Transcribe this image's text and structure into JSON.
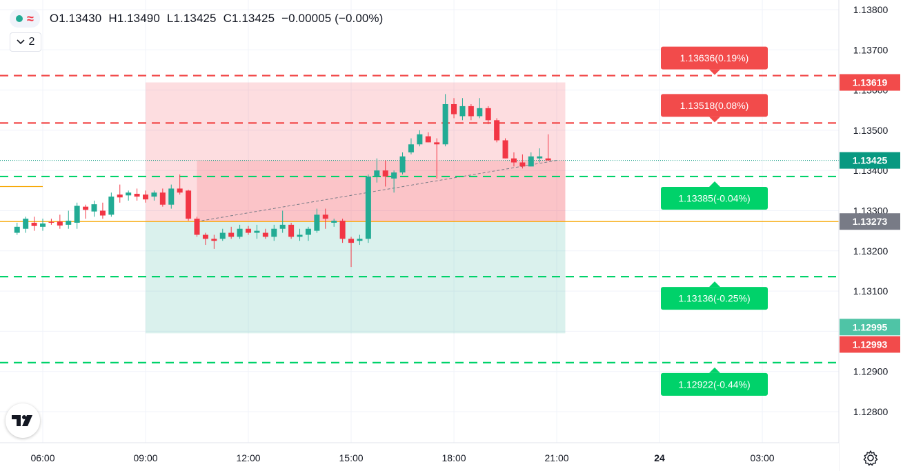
{
  "legend": {
    "open": "O1.13430",
    "high": "H1.13490",
    "low": "L1.13425",
    "close": "C1.13425",
    "change": "−0.00005 (−0.00%)",
    "indicator_count": "2"
  },
  "price_axis": {
    "ticks": [
      "1.13800",
      "1.13700",
      "1.13600",
      "1.13500",
      "1.13400",
      "1.13300",
      "1.13200",
      "1.13100",
      "1.13000",
      "1.12900",
      "1.12800"
    ]
  },
  "time_axis": {
    "ticks": [
      "06:00",
      "09:00",
      "12:00",
      "15:00",
      "18:00",
      "21:00",
      "24",
      "03:00"
    ]
  },
  "axis_badges": {
    "upper_target": "1.13619",
    "last_price": "1.13425",
    "entry": "1.13273",
    "lower_green": "1.12995",
    "lower_red": "1.12993"
  },
  "order_labels": {
    "tp2": "1.13636(0.19%)",
    "tp1": "1.13518(0.08%)",
    "sl1": "1.13385(-0.04%)",
    "sl2": "1.13136(-0.25%)",
    "sl3": "1.12922(-0.44%)"
  },
  "colors": {
    "up": "#22ab94",
    "down": "#f23645",
    "entry_line": "#f7a600",
    "label_red": "#f24b4b",
    "label_green": "#00d26a"
  },
  "chart_data": {
    "type": "candlestick",
    "symbol_interval": "15m",
    "price_range": [
      1.1275,
      1.1385
    ],
    "candles": [
      {
        "t": "05:15",
        "o": 1.13245,
        "h": 1.1327,
        "l": 1.1324,
        "c": 1.1326
      },
      {
        "t": "05:30",
        "o": 1.13255,
        "h": 1.13285,
        "l": 1.13245,
        "c": 1.1328
      },
      {
        "t": "05:45",
        "o": 1.1327,
        "h": 1.13285,
        "l": 1.1325,
        "c": 1.13262
      },
      {
        "t": "06:00",
        "o": 1.1326,
        "h": 1.1328,
        "l": 1.1325,
        "c": 1.13268
      },
      {
        "t": "06:15",
        "o": 1.13272,
        "h": 1.1328,
        "l": 1.13265,
        "c": 1.1327
      },
      {
        "t": "06:30",
        "o": 1.13273,
        "h": 1.1329,
        "l": 1.13255,
        "c": 1.13263
      },
      {
        "t": "06:45",
        "o": 1.13265,
        "h": 1.133,
        "l": 1.13255,
        "c": 1.13275
      },
      {
        "t": "07:00",
        "o": 1.1327,
        "h": 1.1332,
        "l": 1.13255,
        "c": 1.13312
      },
      {
        "t": "07:15",
        "o": 1.1331,
        "h": 1.13315,
        "l": 1.1328,
        "c": 1.13302
      },
      {
        "t": "07:30",
        "o": 1.13298,
        "h": 1.13325,
        "l": 1.13285,
        "c": 1.13316
      },
      {
        "t": "07:45",
        "o": 1.133,
        "h": 1.1332,
        "l": 1.1328,
        "c": 1.13288
      },
      {
        "t": "08:00",
        "o": 1.1329,
        "h": 1.13345,
        "l": 1.13285,
        "c": 1.13335
      },
      {
        "t": "08:15",
        "o": 1.1334,
        "h": 1.13365,
        "l": 1.1332,
        "c": 1.13333
      },
      {
        "t": "08:30",
        "o": 1.13338,
        "h": 1.1335,
        "l": 1.13325,
        "c": 1.13345
      },
      {
        "t": "08:45",
        "o": 1.13342,
        "h": 1.13355,
        "l": 1.13325,
        "c": 1.13335
      },
      {
        "t": "09:00",
        "o": 1.1334,
        "h": 1.1335,
        "l": 1.1332,
        "c": 1.13328
      },
      {
        "t": "09:15",
        "o": 1.13335,
        "h": 1.1335,
        "l": 1.13325,
        "c": 1.13345
      },
      {
        "t": "09:30",
        "o": 1.13345,
        "h": 1.13355,
        "l": 1.1331,
        "c": 1.13315
      },
      {
        "t": "09:45",
        "o": 1.13315,
        "h": 1.13365,
        "l": 1.13305,
        "c": 1.13355
      },
      {
        "t": "10:00",
        "o": 1.13355,
        "h": 1.1339,
        "l": 1.1334,
        "c": 1.13345
      },
      {
        "t": "10:15",
        "o": 1.1335,
        "h": 1.13352,
        "l": 1.13275,
        "c": 1.1328
      },
      {
        "t": "10:30",
        "o": 1.1328,
        "h": 1.13285,
        "l": 1.13235,
        "c": 1.1324
      },
      {
        "t": "10:45",
        "o": 1.1324,
        "h": 1.13245,
        "l": 1.13215,
        "c": 1.1323
      },
      {
        "t": "11:00",
        "o": 1.1323,
        "h": 1.1324,
        "l": 1.13205,
        "c": 1.13225
      },
      {
        "t": "11:15",
        "o": 1.1323,
        "h": 1.13255,
        "l": 1.13225,
        "c": 1.13245
      },
      {
        "t": "11:30",
        "o": 1.13245,
        "h": 1.1326,
        "l": 1.1323,
        "c": 1.13235
      },
      {
        "t": "11:45",
        "o": 1.13235,
        "h": 1.13265,
        "l": 1.1323,
        "c": 1.13255
      },
      {
        "t": "12:00",
        "o": 1.13255,
        "h": 1.13262,
        "l": 1.1324,
        "c": 1.13245
      },
      {
        "t": "12:15",
        "o": 1.13245,
        "h": 1.13265,
        "l": 1.1323,
        "c": 1.1325
      },
      {
        "t": "12:30",
        "o": 1.13245,
        "h": 1.13255,
        "l": 1.1323,
        "c": 1.13235
      },
      {
        "t": "12:45",
        "o": 1.13235,
        "h": 1.13265,
        "l": 1.13225,
        "c": 1.13255
      },
      {
        "t": "13:00",
        "o": 1.13255,
        "h": 1.133,
        "l": 1.13245,
        "c": 1.13265
      },
      {
        "t": "13:15",
        "o": 1.13265,
        "h": 1.1327,
        "l": 1.1323,
        "c": 1.13235
      },
      {
        "t": "13:30",
        "o": 1.13235,
        "h": 1.13255,
        "l": 1.13225,
        "c": 1.1324
      },
      {
        "t": "13:45",
        "o": 1.1324,
        "h": 1.1326,
        "l": 1.13225,
        "c": 1.13255
      },
      {
        "t": "14:00",
        "o": 1.1325,
        "h": 1.13305,
        "l": 1.13245,
        "c": 1.1329
      },
      {
        "t": "14:15",
        "o": 1.1329,
        "h": 1.13305,
        "l": 1.13255,
        "c": 1.1328
      },
      {
        "t": "14:30",
        "o": 1.1327,
        "h": 1.1328,
        "l": 1.1326,
        "c": 1.13275
      },
      {
        "t": "14:45",
        "o": 1.13275,
        "h": 1.1328,
        "l": 1.1322,
        "c": 1.1323
      },
      {
        "t": "15:00",
        "o": 1.1323,
        "h": 1.13235,
        "l": 1.1316,
        "c": 1.1322
      },
      {
        "t": "15:15",
        "o": 1.13225,
        "h": 1.1324,
        "l": 1.13215,
        "c": 1.1323
      },
      {
        "t": "15:30",
        "o": 1.1323,
        "h": 1.1339,
        "l": 1.1322,
        "c": 1.13385
      },
      {
        "t": "15:45",
        "o": 1.13385,
        "h": 1.1343,
        "l": 1.1337,
        "c": 1.134
      },
      {
        "t": "16:00",
        "o": 1.134,
        "h": 1.13425,
        "l": 1.1336,
        "c": 1.13385
      },
      {
        "t": "16:15",
        "o": 1.1338,
        "h": 1.134,
        "l": 1.13345,
        "c": 1.13395
      },
      {
        "t": "16:30",
        "o": 1.13395,
        "h": 1.13445,
        "l": 1.1339,
        "c": 1.13435
      },
      {
        "t": "16:45",
        "o": 1.13445,
        "h": 1.1348,
        "l": 1.1344,
        "c": 1.13465
      },
      {
        "t": "17:00",
        "o": 1.13465,
        "h": 1.135,
        "l": 1.1346,
        "c": 1.1349
      },
      {
        "t": "17:15",
        "o": 1.13485,
        "h": 1.13495,
        "l": 1.1347,
        "c": 1.1347
      },
      {
        "t": "17:30",
        "o": 1.1347,
        "h": 1.1348,
        "l": 1.1338,
        "c": 1.13465
      },
      {
        "t": "17:45",
        "o": 1.13465,
        "h": 1.1359,
        "l": 1.1346,
        "c": 1.13565
      },
      {
        "t": "18:00",
        "o": 1.13565,
        "h": 1.1358,
        "l": 1.1353,
        "c": 1.1354
      },
      {
        "t": "18:15",
        "o": 1.13535,
        "h": 1.1358,
        "l": 1.13525,
        "c": 1.1356
      },
      {
        "t": "18:30",
        "o": 1.1356,
        "h": 1.13565,
        "l": 1.13525,
        "c": 1.13535
      },
      {
        "t": "18:45",
        "o": 1.13535,
        "h": 1.1358,
        "l": 1.1353,
        "c": 1.13555
      },
      {
        "t": "19:00",
        "o": 1.13555,
        "h": 1.1356,
        "l": 1.13515,
        "c": 1.13525
      },
      {
        "t": "19:15",
        "o": 1.13525,
        "h": 1.1353,
        "l": 1.1347,
        "c": 1.13475
      },
      {
        "t": "19:30",
        "o": 1.13475,
        "h": 1.1348,
        "l": 1.1343,
        "c": 1.1343
      },
      {
        "t": "19:45",
        "o": 1.1343,
        "h": 1.13445,
        "l": 1.1341,
        "c": 1.1342
      },
      {
        "t": "20:00",
        "o": 1.1342,
        "h": 1.1344,
        "l": 1.13405,
        "c": 1.1341
      },
      {
        "t": "20:15",
        "o": 1.1341,
        "h": 1.13445,
        "l": 1.1341,
        "c": 1.13435
      },
      {
        "t": "20:30",
        "o": 1.1343,
        "h": 1.13455,
        "l": 1.1342,
        "c": 1.13435
      },
      {
        "t": "20:45",
        "o": 1.1343,
        "h": 1.1349,
        "l": 1.13425,
        "c": 1.13425
      }
    ],
    "position": {
      "entry": 1.13273,
      "target": 1.13619,
      "stop": 1.12995,
      "start": "09:00",
      "end": "21:15"
    },
    "levels_red": [
      1.13636,
      1.13518
    ],
    "levels_green": [
      1.13385,
      1.13136,
      1.12922
    ]
  }
}
